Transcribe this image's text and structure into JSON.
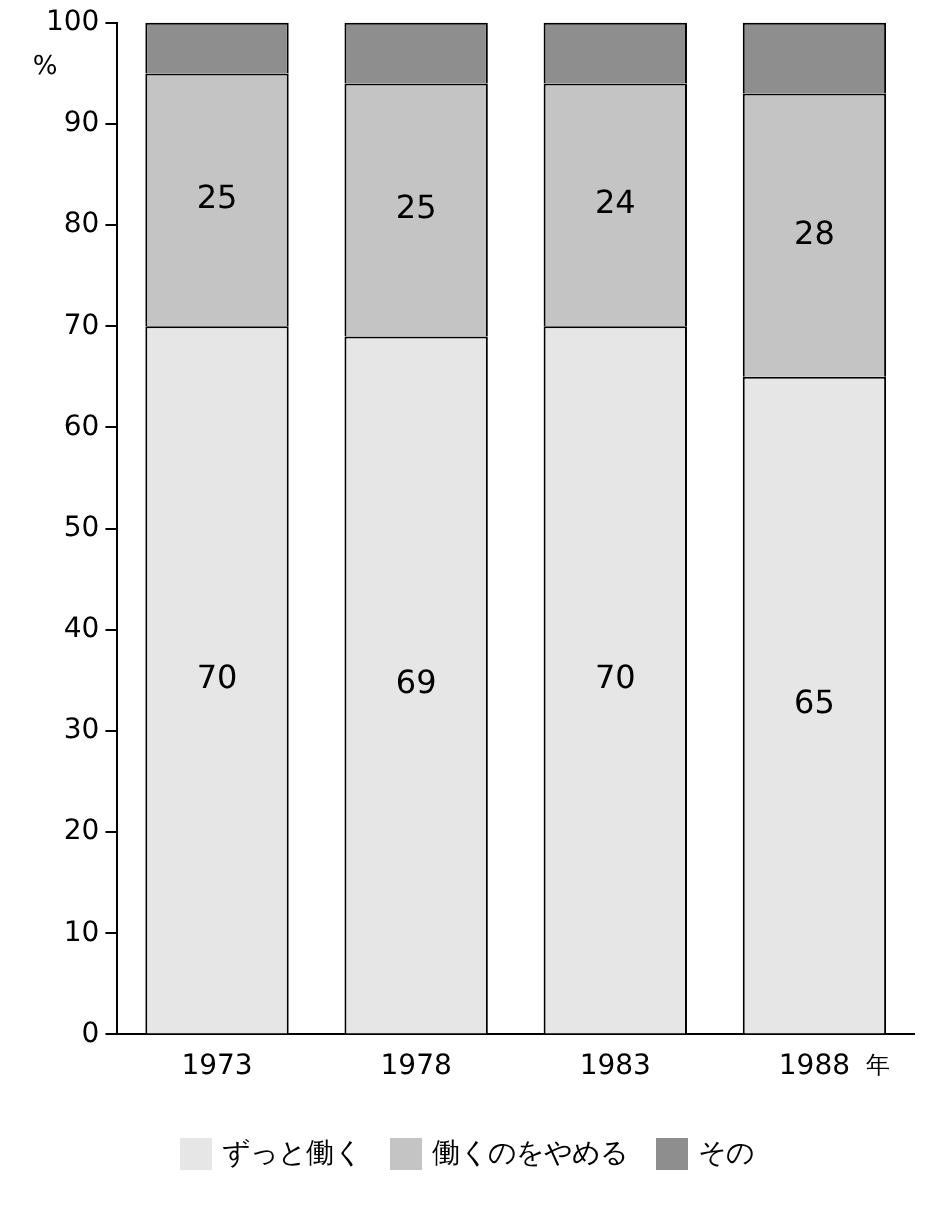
{
  "chart_data": {
    "type": "bar",
    "stacked": true,
    "ylabel": "%",
    "xlabel": "年",
    "categories": [
      "1973",
      "1978",
      "1983",
      "1988"
    ],
    "ylim": [
      0,
      100
    ],
    "yticks": [
      0,
      10,
      20,
      30,
      40,
      50,
      60,
      70,
      80,
      90,
      100
    ],
    "grid": false,
    "legend": "bottom",
    "series": [
      {
        "name": "ずっと働く",
        "color": "#e6e6e6",
        "values": [
          70,
          69,
          70,
          65
        ],
        "value_labels": [
          "70",
          "69",
          "70",
          "65"
        ]
      },
      {
        "name": "働くのをやめる",
        "color": "#c4c4c4",
        "values": [
          25,
          25,
          24,
          28
        ],
        "value_labels": [
          "25",
          "25",
          "24",
          "28"
        ]
      },
      {
        "name": "その",
        "color": "#8e8e8e",
        "values": [
          5,
          6,
          6,
          7
        ],
        "value_labels": [
          null,
          null,
          null,
          null
        ]
      }
    ]
  }
}
